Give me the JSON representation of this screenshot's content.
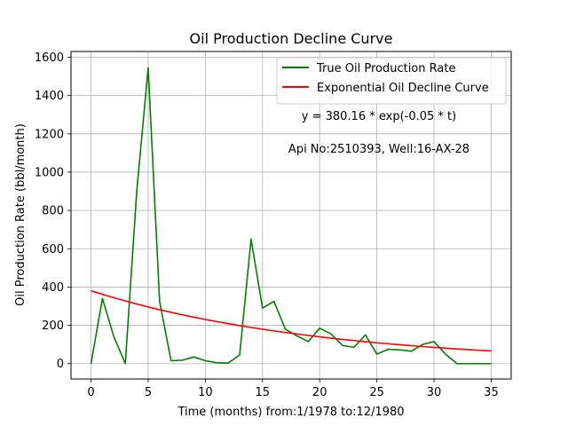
{
  "chart_data": {
    "type": "line",
    "title": "Oil Production Decline Curve",
    "xlabel": "Time (months) from:1/1978 to:12/1980",
    "ylabel": "Oil Production Rate (bbl/month)",
    "xlim": [
      -1.75,
      36.75
    ],
    "ylim": [
      -80,
      1630
    ],
    "xticks": [
      0,
      5,
      10,
      15,
      20,
      25,
      30,
      35
    ],
    "yticks": [
      0,
      200,
      400,
      600,
      800,
      1000,
      1200,
      1400,
      1600
    ],
    "grid": true,
    "legend_position": "top-right",
    "x": [
      0,
      1,
      2,
      3,
      4,
      5,
      6,
      7,
      8,
      9,
      10,
      11,
      12,
      13,
      14,
      15,
      16,
      17,
      18,
      19,
      20,
      21,
      22,
      23,
      24,
      25,
      26,
      27,
      28,
      29,
      30,
      31,
      32,
      33,
      34,
      35
    ],
    "series": [
      {
        "name": "True Oil Production Rate",
        "color": "#008000",
        "values": [
          0,
          340,
          140,
          0,
          900,
          1545,
          325,
          15,
          18,
          35,
          15,
          5,
          3,
          45,
          650,
          290,
          325,
          180,
          145,
          115,
          185,
          155,
          95,
          85,
          150,
          50,
          75,
          72,
          65,
          100,
          115,
          50,
          0,
          0,
          0,
          0
        ]
      },
      {
        "name": "Exponential Oil Decline Curve",
        "color": "#ff0000",
        "equation": {
          "a": 380.16,
          "k": -0.05
        },
        "values": [
          380.16,
          361.62,
          343.98,
          327.2,
          311.25,
          296.07,
          281.63,
          267.89,
          254.82,
          242.39,
          230.57,
          219.32,
          208.63,
          198.45,
          188.77,
          179.56,
          170.8,
          162.47,
          154.55,
          147.01,
          139.84,
          133.02,
          126.53,
          120.36,
          114.49,
          108.9,
          103.59,
          98.54,
          93.73,
          89.16,
          84.81,
          80.67,
          76.74,
          73.0,
          69.44,
          66.05
        ]
      }
    ],
    "annotations": [
      "y = 380.16 * exp(-0.05 * t)",
      "Api No:2510393, Well:16-AX-28"
    ]
  }
}
